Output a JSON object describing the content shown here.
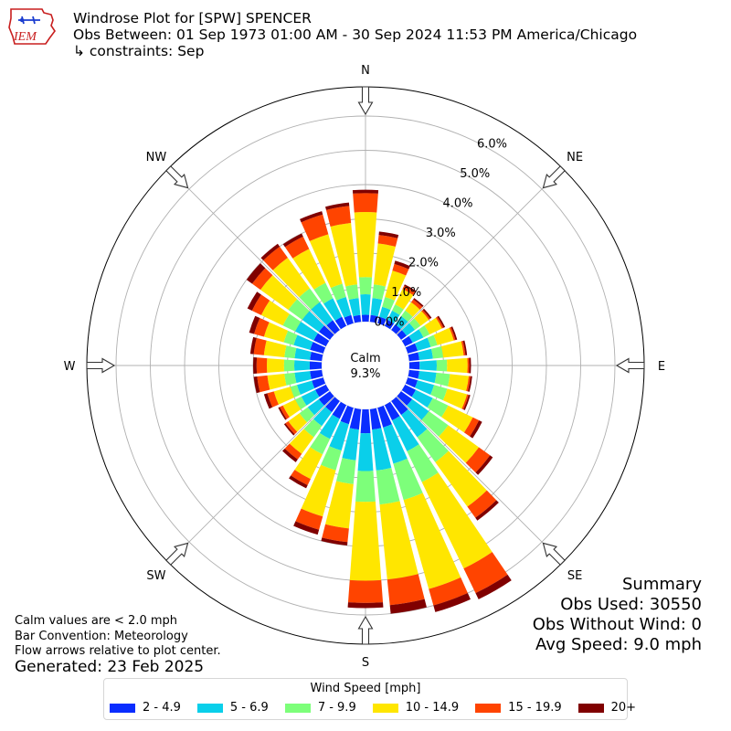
{
  "header": {
    "title": "Windrose Plot for [SPW] SPENCER",
    "obs_between": "Obs Between: 01 Sep 1973 01:00 AM - 30 Sep 2024 11:53 PM America/Chicago",
    "constraints": "↳ constraints: Sep",
    "logo_text": "IEM"
  },
  "footer": {
    "calm_note": "Calm values are < 2.0 mph",
    "bar_convention": "Bar Convention: Meteorology",
    "flow_note": "Flow arrows relative to plot center.",
    "generated": "Generated: 23 Feb 2025"
  },
  "summary": {
    "heading": "Summary",
    "obs_used": "Obs Used: 30550",
    "obs_without_wind": "Obs Without Wind: 0",
    "avg_speed": "Avg Speed: 9.0 mph"
  },
  "chart_data": {
    "type": "windrose",
    "calm_label": "Calm",
    "calm_value": "9.3%",
    "radial_ticks": [
      "0.0%",
      "1.0%",
      "2.0%",
      "3.0%",
      "4.0%",
      "5.0%",
      "6.0%"
    ],
    "radial_max": 6.5,
    "compass_labels": [
      {
        "label": "N",
        "deg": 0
      },
      {
        "label": "NE",
        "deg": 45
      },
      {
        "label": "E",
        "deg": 90
      },
      {
        "label": "SE",
        "deg": 135
      },
      {
        "label": "S",
        "deg": 180
      },
      {
        "label": "SW",
        "deg": 225
      },
      {
        "label": "W",
        "deg": 270
      },
      {
        "label": "NW",
        "deg": 315
      }
    ],
    "legend_title": "Wind Speed [mph]",
    "bins": [
      {
        "label": "2 - 4.9",
        "color": "#0a2dff"
      },
      {
        "label": "5 - 6.9",
        "color": "#0acfea"
      },
      {
        "label": "7 - 9.9",
        "color": "#7dff7a"
      },
      {
        "label": "10 - 14.9",
        "color": "#ffe600"
      },
      {
        "label": "15 - 19.9",
        "color": "#ff4400"
      },
      {
        "label": "20+",
        "color": "#800000"
      }
    ],
    "directions": [
      {
        "deg": 0,
        "cumulative": [
          0.2,
          0.8,
          1.3,
          3.2,
          3.75,
          3.85
        ]
      },
      {
        "deg": 10,
        "cumulative": [
          0.2,
          0.7,
          1.1,
          2.3,
          2.55,
          2.65
        ]
      },
      {
        "deg": 20,
        "cumulative": [
          0.2,
          0.5,
          0.8,
          1.6,
          1.8,
          1.9
        ]
      },
      {
        "deg": 30,
        "cumulative": [
          0.2,
          0.5,
          0.7,
          1.2,
          1.3,
          1.35
        ]
      },
      {
        "deg": 40,
        "cumulative": [
          0.2,
          0.5,
          0.7,
          1.0,
          1.1,
          1.15
        ]
      },
      {
        "deg": 50,
        "cumulative": [
          0.2,
          0.5,
          0.7,
          1.0,
          1.05,
          1.1
        ]
      },
      {
        "deg": 60,
        "cumulative": [
          0.25,
          0.6,
          0.8,
          1.2,
          1.25,
          1.3
        ]
      },
      {
        "deg": 70,
        "cumulative": [
          0.3,
          0.7,
          0.9,
          1.4,
          1.45,
          1.5
        ]
      },
      {
        "deg": 80,
        "cumulative": [
          0.3,
          0.7,
          1.0,
          1.6,
          1.65,
          1.7
        ]
      },
      {
        "deg": 90,
        "cumulative": [
          0.3,
          0.8,
          1.1,
          1.7,
          1.75,
          1.8
        ]
      },
      {
        "deg": 100,
        "cumulative": [
          0.3,
          0.8,
          1.2,
          1.75,
          1.8,
          1.85
        ]
      },
      {
        "deg": 110,
        "cumulative": [
          0.3,
          0.8,
          1.2,
          1.8,
          1.85,
          1.9
        ]
      },
      {
        "deg": 120,
        "cumulative": [
          0.35,
          0.9,
          1.4,
          2.2,
          2.4,
          2.5
        ]
      },
      {
        "deg": 130,
        "cumulative": [
          0.4,
          1.0,
          1.7,
          2.8,
          3.2,
          3.3
        ]
      },
      {
        "deg": 140,
        "cumulative": [
          0.5,
          1.3,
          2.2,
          3.8,
          4.2,
          4.3
        ]
      },
      {
        "deg": 150,
        "cumulative": [
          0.5,
          1.5,
          2.5,
          5.3,
          6.1,
          6.3
        ]
      },
      {
        "deg": 160,
        "cumulative": [
          0.6,
          1.7,
          2.8,
          5.5,
          6.0,
          6.2
        ]
      },
      {
        "deg": 170,
        "cumulative": [
          0.6,
          1.8,
          2.8,
          5.0,
          5.75,
          6.0
        ]
      },
      {
        "deg": 180,
        "cumulative": [
          0.7,
          1.8,
          2.7,
          5.0,
          5.65,
          5.8
        ]
      },
      {
        "deg": 190,
        "cumulative": [
          0.6,
          1.5,
          2.2,
          3.5,
          3.9,
          4.0
        ]
      },
      {
        "deg": 200,
        "cumulative": [
          0.5,
          1.3,
          1.9,
          3.3,
          3.7,
          3.85
        ]
      },
      {
        "deg": 210,
        "cumulative": [
          0.45,
          1.1,
          1.6,
          2.4,
          2.6,
          2.7
        ]
      },
      {
        "deg": 220,
        "cumulative": [
          0.4,
          0.9,
          1.3,
          1.9,
          2.1,
          2.2
        ]
      },
      {
        "deg": 230,
        "cumulative": [
          0.4,
          0.8,
          1.1,
          1.5,
          1.6,
          1.65
        ]
      },
      {
        "deg": 240,
        "cumulative": [
          0.35,
          0.8,
          1.0,
          1.4,
          1.5,
          1.55
        ]
      },
      {
        "deg": 250,
        "cumulative": [
          0.35,
          0.8,
          1.0,
          1.5,
          1.7,
          1.8
        ]
      },
      {
        "deg": 260,
        "cumulative": [
          0.35,
          0.8,
          1.1,
          1.6,
          1.9,
          2.0
        ]
      },
      {
        "deg": 270,
        "cumulative": [
          0.35,
          0.8,
          1.1,
          1.6,
          1.9,
          2.0
        ]
      },
      {
        "deg": 280,
        "cumulative": [
          0.35,
          0.8,
          1.1,
          1.7,
          2.0,
          2.1
        ]
      },
      {
        "deg": 290,
        "cumulative": [
          0.4,
          0.9,
          1.2,
          1.8,
          2.1,
          2.25
        ]
      },
      {
        "deg": 300,
        "cumulative": [
          0.4,
          1.0,
          1.4,
          2.1,
          2.4,
          2.55
        ]
      },
      {
        "deg": 310,
        "cumulative": [
          0.4,
          1.0,
          1.5,
          2.5,
          2.8,
          3.0
        ]
      },
      {
        "deg": 320,
        "cumulative": [
          0.35,
          1.0,
          1.5,
          2.6,
          3.0,
          3.1
        ]
      },
      {
        "deg": 330,
        "cumulative": [
          0.3,
          0.9,
          1.4,
          2.5,
          2.9,
          3.0
        ]
      },
      {
        "deg": 340,
        "cumulative": [
          0.25,
          0.8,
          1.2,
          2.7,
          3.3,
          3.4
        ]
      },
      {
        "deg": 350,
        "cumulative": [
          0.2,
          0.7,
          1.1,
          2.9,
          3.4,
          3.5
        ]
      }
    ]
  }
}
